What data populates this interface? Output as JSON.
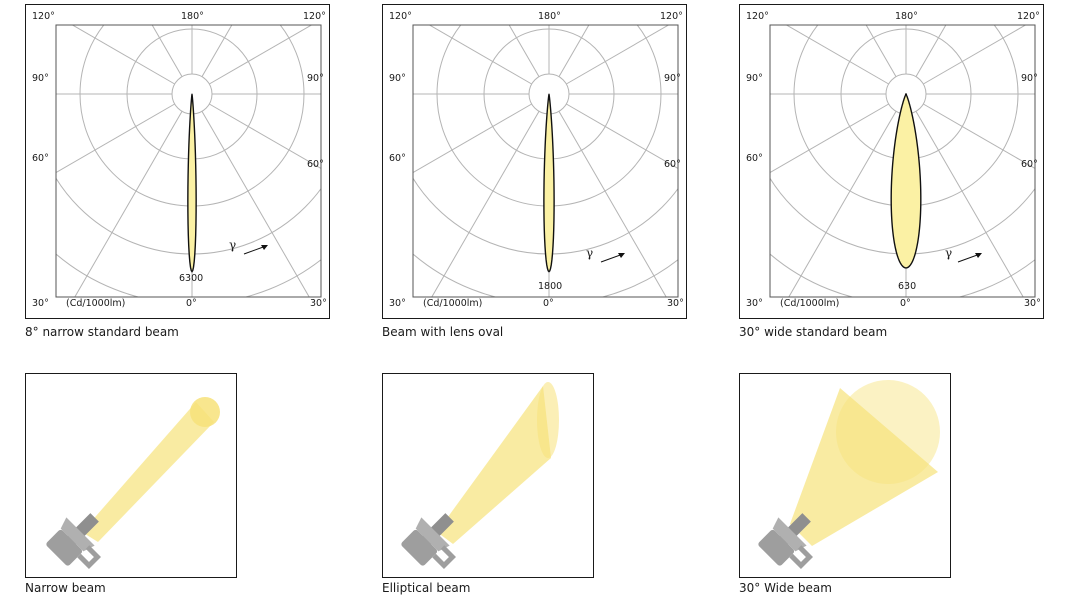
{
  "colors": {
    "beam_fill": "#fbf1a4",
    "beam_stroke": "#111111",
    "grid": "#b4b4b4",
    "lamp": "#9e9e9e",
    "light": "#f7e27a"
  },
  "polar_diagrams": [
    {
      "caption": "8° narrow standard beam",
      "peak_value": "6300",
      "half_width_deg": 2.6,
      "reach": 0.96
    },
    {
      "caption": "Beam with lens oval",
      "peak_value": "1800",
      "half_width_deg": 3.2,
      "reach": 0.96
    },
    {
      "caption": "30° wide standard beam",
      "peak_value": "630",
      "half_width_deg": 9.5,
      "reach": 0.94
    }
  ],
  "angle_labels": {
    "top_left": "120°",
    "top_center": "180°",
    "top_right": "120°",
    "upper_left": "90°",
    "upper_right": "90°",
    "middle_left": "60°",
    "middle_right": "60°",
    "bottom_left": "30°",
    "bottom_center": "0°",
    "bottom_right": "30°"
  },
  "unit_label": "(Cd/1000lm)",
  "gamma_symbol": "γ",
  "beam_illustrations": [
    {
      "caption": "Narrow beam",
      "beam_type": "narrow"
    },
    {
      "caption": "Elliptical beam",
      "beam_type": "elliptical"
    },
    {
      "caption": "30° Wide beam",
      "beam_type": "wide"
    }
  ]
}
